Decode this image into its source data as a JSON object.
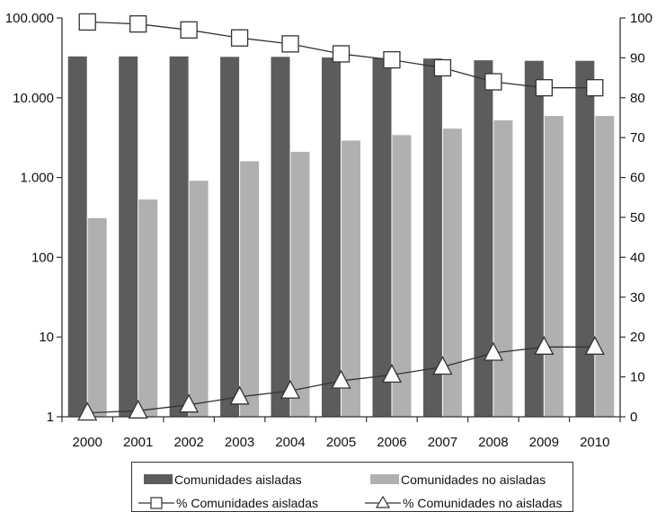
{
  "chart_data": {
    "type": "bar",
    "categories": [
      "2000",
      "2001",
      "2002",
      "2003",
      "2004",
      "2005",
      "2006",
      "2007",
      "2008",
      "2009",
      "2010"
    ],
    "series": [
      {
        "name": "Comunidades aisladas",
        "kind": "bar",
        "axis": "left",
        "color": "#5c5c5c",
        "values": [
          33000,
          33000,
          33000,
          32500,
          32500,
          32000,
          31500,
          31000,
          29500,
          29000,
          29000
        ]
      },
      {
        "name": "Comunidades no aisladas",
        "kind": "bar",
        "axis": "left",
        "color": "#b0b0b0",
        "values": [
          310,
          530,
          910,
          1600,
          2100,
          2900,
          3400,
          4100,
          5200,
          5900,
          5900
        ]
      },
      {
        "name": "% Comunidades aisladas",
        "kind": "line",
        "marker": "square",
        "axis": "right",
        "color": "#333333",
        "values": [
          99,
          98.5,
          97,
          95,
          93.5,
          91,
          89.5,
          87.5,
          84,
          82.5,
          82.5
        ]
      },
      {
        "name": "% Comunidades no aisladas",
        "kind": "line",
        "marker": "triangle",
        "axis": "right",
        "color": "#333333",
        "values": [
          1,
          1.5,
          3,
          5,
          6.5,
          9,
          10.5,
          12.5,
          16,
          17.5,
          17.5
        ]
      }
    ],
    "y_left": {
      "scale": "log",
      "ylim": [
        1,
        100000
      ],
      "ticks": [
        1,
        10,
        100,
        1000,
        10000,
        100000
      ],
      "tick_labels": [
        "1",
        "10",
        "100",
        "1.000",
        "10.000",
        "100.000"
      ]
    },
    "y_right": {
      "scale": "linear",
      "ylim": [
        0,
        100
      ],
      "ticks": [
        0,
        10,
        20,
        30,
        40,
        50,
        60,
        70,
        80,
        90,
        100
      ],
      "tick_labels": [
        "0",
        "10",
        "20",
        "30",
        "40",
        "50",
        "60",
        "70",
        "80",
        "90",
        "100"
      ]
    },
    "title": "",
    "xlabel": "",
    "ylabel": "",
    "grid": false,
    "legend_position": "bottom"
  }
}
